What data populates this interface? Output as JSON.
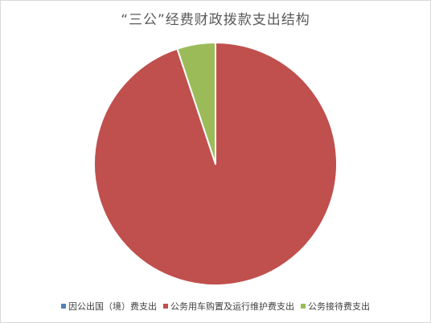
{
  "chart_data": {
    "type": "pie",
    "title": "“三公”经费财政拨款支出结构",
    "categories": [
      "因公出国（境）费支出",
      "公务用车购置及运行维护费支出",
      "公务接待费支出"
    ],
    "values": [
      0,
      94.9,
      5.1
    ],
    "unit": "%",
    "colors": [
      "#4f81bd",
      "#c0504d",
      "#9bbb59"
    ],
    "legend_position": "bottom",
    "start_angle_deg": 0,
    "direction": "clockwise"
  }
}
